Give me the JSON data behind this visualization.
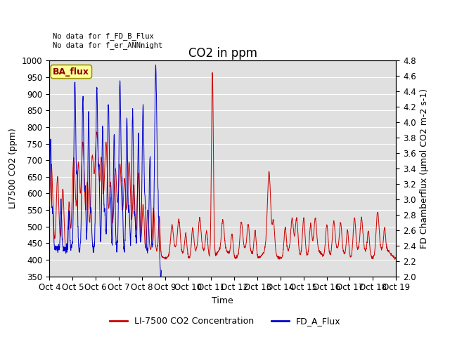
{
  "title": "CO2 in ppm",
  "xlabel": "Time",
  "ylabel_left": "LI7500 CO2 (ppm)",
  "ylabel_right": "FD Chamberflux (μmol CO2 m-2 s-1)",
  "ylim_left": [
    350,
    1000
  ],
  "ylim_right": [
    2.0,
    4.8
  ],
  "xtick_labels": [
    "Oct 4",
    "Oct 5",
    "Oct 6",
    "Oct 7",
    "Oct 8",
    "Oct 9",
    "Oct 10",
    "Oct 11",
    "Oct 12",
    "Oct 13",
    "Oct 14",
    "Oct 15",
    "Oct 16",
    "Oct 17",
    "Oct 18",
    "Oct 19"
  ],
  "annotation_text": "No data for f_FD_B_Flux\nNo data for f_er_ANNnight",
  "legend_text1": "LI-7500 CO2 Concentration",
  "legend_text2": "FD_A_Flux",
  "legend_box_label": "BA_flux",
  "color_red": "#cc0000",
  "color_blue": "#0000cc",
  "color_legend_box_bg": "#ffff99",
  "color_legend_box_edge": "#999900",
  "bg_color": "#e0e0e0",
  "grid_color": "white",
  "title_fontsize": 12,
  "axis_fontsize": 9,
  "tick_fontsize": 8.5
}
